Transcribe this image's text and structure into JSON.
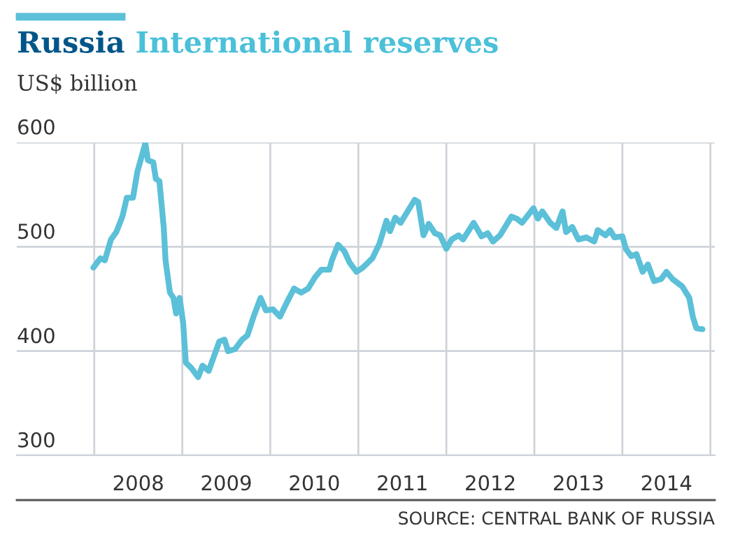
{
  "chart_data": {
    "type": "line",
    "title": "Russia International reserves",
    "subtitle": "US$ billion",
    "annotations": [
      "SOURCE: CENTRAL BANK OF RUSSIA"
    ],
    "series": [
      {
        "color": "#5bc0d8",
        "x": [
          2007.99,
          2008.07,
          2008.12,
          2008.19,
          2008.25,
          2008.32,
          2008.37,
          2008.44,
          2008.49,
          2008.58,
          2008.61,
          2008.67,
          2008.7,
          2008.74,
          2008.79,
          2008.81,
          2008.86,
          2008.9,
          2008.93,
          2008.97,
          2009.01,
          2009.04,
          2009.1,
          2009.18,
          2009.23,
          2009.3,
          2009.36,
          2009.42,
          2009.48,
          2009.52,
          2009.6,
          2009.68,
          2009.74,
          2009.81,
          2009.89,
          2009.95,
          2010.03,
          2010.11,
          2010.19,
          2010.27,
          2010.35,
          2010.43,
          2010.51,
          2010.58,
          2010.67,
          2010.7,
          2010.77,
          2010.84,
          2010.9,
          2010.98,
          2011.05,
          2011.16,
          2011.24,
          2011.32,
          2011.36,
          2011.42,
          2011.48,
          2011.56,
          2011.64,
          2011.68,
          2011.74,
          2011.8,
          2011.87,
          2011.93,
          2012.0,
          2012.06,
          2012.14,
          2012.19,
          2012.31,
          2012.4,
          2012.47,
          2012.53,
          2012.61,
          2012.74,
          2012.8,
          2012.86,
          2012.99,
          2013.04,
          2013.09,
          2013.18,
          2013.25,
          2013.32,
          2013.36,
          2013.43,
          2013.5,
          2013.59,
          2013.68,
          2013.72,
          2013.81,
          2013.86,
          2013.91,
          2014.0,
          2014.04,
          2014.1,
          2014.16,
          2014.23,
          2014.29,
          2014.36,
          2014.44,
          2014.5,
          2014.57,
          2014.68,
          2014.76,
          2014.8,
          2014.84,
          2014.91
        ],
        "values": [
          480,
          489,
          487,
          507,
          514,
          529,
          547,
          547,
          572,
          599,
          583,
          581,
          565,
          563,
          518,
          487,
          456,
          451,
          436,
          451,
          427,
          389,
          384,
          375,
          386,
          381,
          395,
          409,
          411,
          400,
          402,
          411,
          415,
          433,
          451,
          439,
          440,
          433,
          447,
          460,
          456,
          460,
          471,
          478,
          478,
          487,
          502,
          496,
          485,
          476,
          480,
          489,
          503,
          525,
          515,
          528,
          523,
          534,
          545,
          543,
          511,
          522,
          513,
          511,
          498,
          507,
          511,
          507,
          523,
          510,
          513,
          505,
          511,
          529,
          527,
          523,
          537,
          527,
          534,
          523,
          518,
          534,
          514,
          519,
          507,
          509,
          505,
          516,
          511,
          516,
          509,
          510,
          498,
          491,
          493,
          476,
          483,
          467,
          469,
          476,
          469,
          462,
          451,
          433,
          422,
          421
        ]
      }
    ],
    "xlim": [
      2007.12,
      2015.05
    ],
    "xticks": [
      {
        "value": 2008,
        "label": null
      },
      {
        "value": 2008.5,
        "label": "2008"
      },
      {
        "value": 2009,
        "label": null
      },
      {
        "value": 2009.5,
        "label": "2009"
      },
      {
        "value": 2010,
        "label": null
      },
      {
        "value": 2010.5,
        "label": "2010"
      },
      {
        "value": 2011,
        "label": null
      },
      {
        "value": 2011.5,
        "label": "2011"
      },
      {
        "value": 2012,
        "label": null
      },
      {
        "value": 2012.5,
        "label": "2012"
      },
      {
        "value": 2013,
        "label": null
      },
      {
        "value": 2013.5,
        "label": "2013"
      },
      {
        "value": 2014,
        "label": null
      },
      {
        "value": 2014.5,
        "label": "2014"
      },
      {
        "value": 2015,
        "label": null
      }
    ],
    "ylim": [
      300,
      600
    ],
    "yticks": [
      300,
      400,
      500,
      600
    ],
    "grid": true,
    "line_style": "solid",
    "marker": "none"
  }
}
